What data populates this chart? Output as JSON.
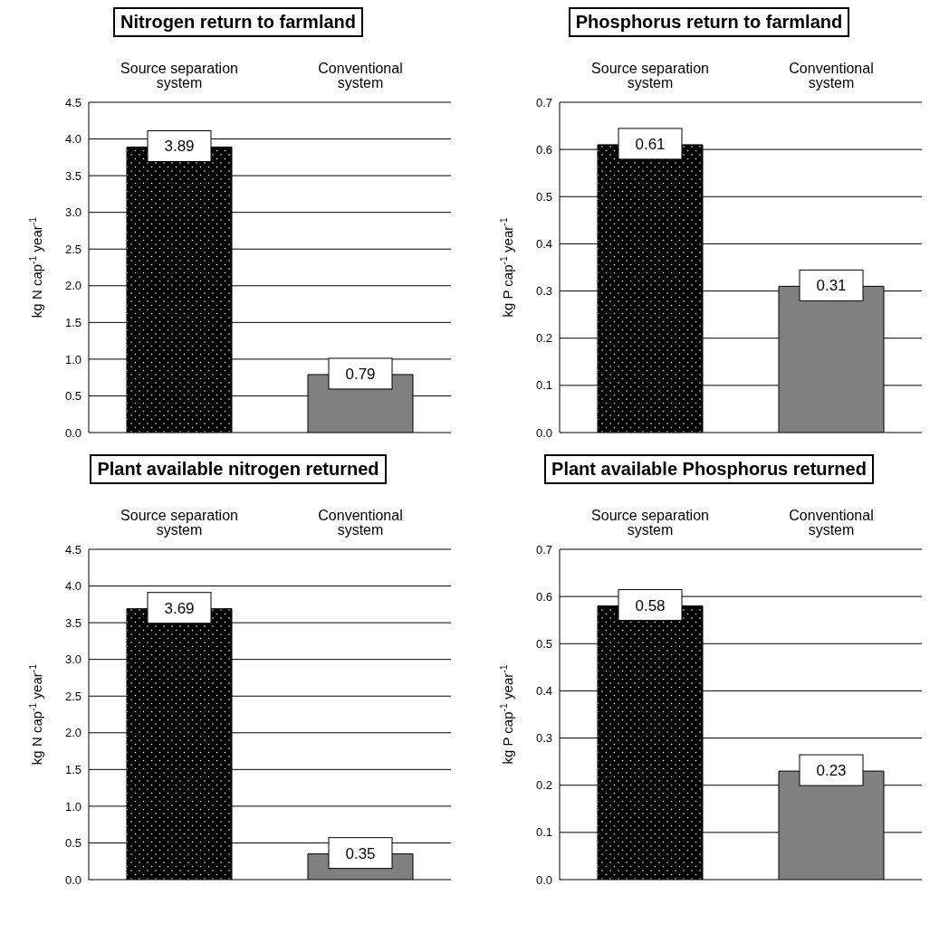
{
  "chart_data": [
    {
      "type": "bar",
      "title": "Nitrogen return to farmland",
      "categories": [
        "Source separation system",
        "Conventional system"
      ],
      "values": [
        3.89,
        0.79
      ],
      "colors": [
        "#000000",
        "#808080"
      ],
      "ylabel": "kg N cap$^{-1}$ year$^{-1}$",
      "ylim": [
        0,
        4.5
      ],
      "yticks": [
        {
          "value": 0,
          "label": "0.0"
        },
        {
          "value": 0.5,
          "label": "0.5"
        },
        {
          "value": 1,
          "label": "1.0"
        },
        {
          "value": 1.5,
          "label": "1.5"
        },
        {
          "value": 2,
          "label": "2.0"
        },
        {
          "value": 2.5,
          "label": "2.5"
        },
        {
          "value": 3,
          "label": "3.0"
        },
        {
          "value": 3.5,
          "label": "3.5"
        },
        {
          "value": 4,
          "label": "4.0"
        },
        {
          "value": 4.5,
          "label": "4.5"
        }
      ],
      "grid": "y",
      "data_labels": true,
      "legend": false
    },
    {
      "type": "bar",
      "title": "Phosphorus return to farmland",
      "categories": [
        "Source separation system",
        "Conventional system"
      ],
      "values": [
        0.61,
        0.31
      ],
      "colors": [
        "#000000",
        "#808080"
      ],
      "ylabel": "kg P cap$^{-1}$ year$^{-1}$",
      "ylim": [
        0,
        0.7
      ],
      "yticks": [
        {
          "value": 0,
          "label": "0.0"
        },
        0.1,
        0.2,
        0.3,
        0.4,
        0.5,
        0.6,
        0.7
      ],
      "grid": "y",
      "data_labels": true,
      "legend": false
    },
    {
      "type": "bar",
      "title": "Plant available nitrogen returned",
      "categories": [
        "Source separation system",
        "Conventional system"
      ],
      "values": [
        3.69,
        0.35
      ],
      "colors": [
        "#000000",
        "#808080"
      ],
      "ylabel": "kg N cap$^{-1}$ year$^{-1}$",
      "ylim": [
        0,
        4.5
      ],
      "yticks": [
        {
          "value": 0,
          "label": "0.0"
        },
        {
          "value": 0.5,
          "label": "0.5"
        },
        {
          "value": 1,
          "label": "1.0"
        },
        {
          "value": 1.5,
          "label": "1.5"
        },
        {
          "value": 2,
          "label": "2.0"
        },
        {
          "value": 2.5,
          "label": "2.5"
        },
        {
          "value": 3,
          "label": "3.0"
        },
        {
          "value": 3.5,
          "label": "3.5"
        },
        {
          "value": 4,
          "label": "4.0"
        },
        {
          "value": 4.5,
          "label": "4.5"
        }
      ],
      "grid": "y",
      "data_labels": true,
      "legend": false
    },
    {
      "type": "bar",
      "title": "Plant available Phosphorus returned",
      "categories": [
        "Source separation system",
        "Conventional system"
      ],
      "values": [
        0.58,
        0.23
      ],
      "colors": [
        "#000000",
        "#808080"
      ],
      "ylabel": "kg P cap$^{-1}$ year$^{-1}$",
      "ylim": [
        0,
        0.7
      ],
      "yticks": [
        {
          "value": 0,
          "label": "0.0"
        },
        0.1,
        0.2,
        0.3,
        0.4,
        0.5,
        0.6,
        0.7
      ],
      "grid": "y",
      "data_labels": true,
      "legend": false
    }
  ]
}
